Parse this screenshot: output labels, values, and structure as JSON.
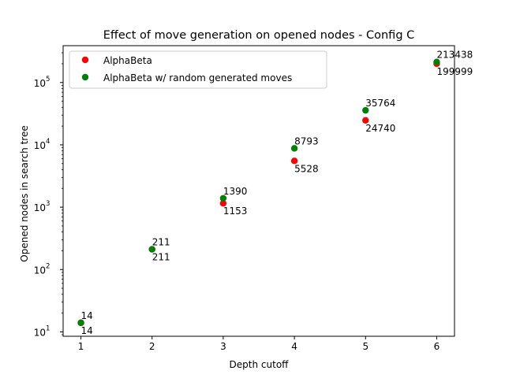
{
  "chart_data": {
    "type": "scatter",
    "title": "Effect of move generation on opened nodes - Config C",
    "xlabel": "Depth cutoff",
    "ylabel": "Opened nodes in search tree",
    "yscale": "log",
    "xlim": [
      0.75,
      6.25
    ],
    "ylim": [
      8.5,
      390000
    ],
    "grid": false,
    "legend_position": "top-left",
    "x_ticks": [
      "1",
      "2",
      "3",
      "4",
      "5",
      "6"
    ],
    "y_ticks": [
      {
        "value": 10,
        "base": "10",
        "exp": "1"
      },
      {
        "value": 100,
        "base": "10",
        "exp": "2"
      },
      {
        "value": 1000,
        "base": "10",
        "exp": "3"
      },
      {
        "value": 10000,
        "base": "10",
        "exp": "4"
      },
      {
        "value": 100000,
        "base": "10",
        "exp": "5"
      }
    ],
    "series": [
      {
        "name": "AlphaBeta",
        "color": "#ff0000",
        "x": [
          1,
          2,
          3,
          4,
          5,
          6
        ],
        "y": [
          14,
          211,
          1153,
          5528,
          24740,
          199999
        ],
        "labels": [
          "14",
          "211",
          "1153",
          "5528",
          "24740",
          "199999"
        ],
        "label_placement": "below"
      },
      {
        "name": "AlphaBeta w/ random generated moves",
        "color": "#008000",
        "x": [
          1,
          2,
          3,
          4,
          5,
          6
        ],
        "y": [
          14,
          211,
          1390,
          8793,
          35764,
          213438
        ],
        "labels": [
          "14",
          "211",
          "1390",
          "8793",
          "35764",
          "213438"
        ],
        "label_placement": "above"
      }
    ]
  }
}
